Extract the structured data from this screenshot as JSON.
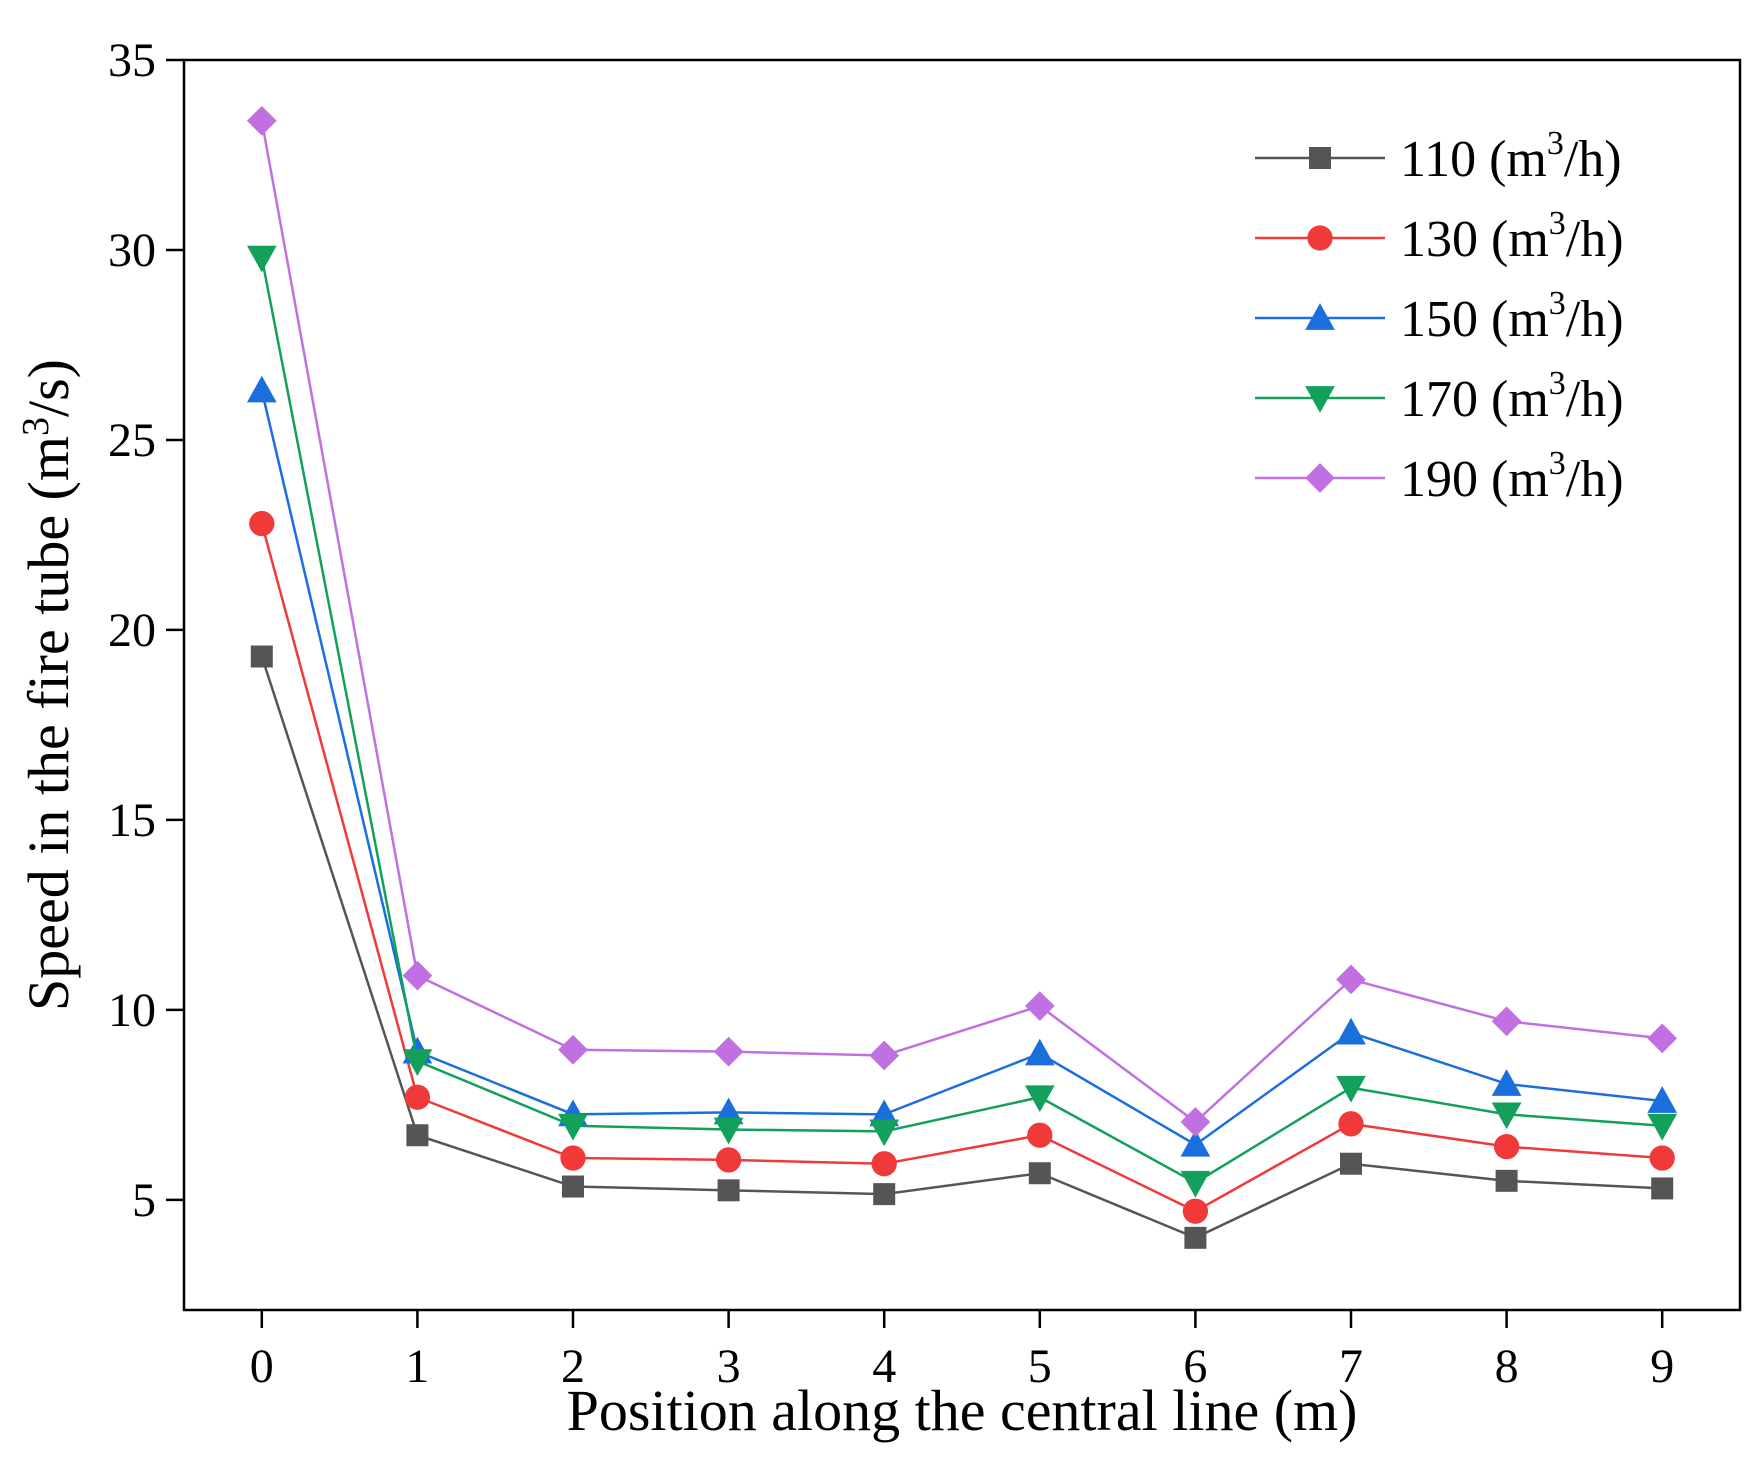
{
  "chart_data": {
    "type": "line",
    "title": "",
    "xlabel": "Position along the central line (m)",
    "ylabel_parts": {
      "before": "Speed in the fire tube (m",
      "sup": "3",
      "after": "/s)"
    },
    "x": [
      0,
      1,
      2,
      3,
      4,
      5,
      6,
      7,
      8,
      9
    ],
    "xlim": [
      -0.5,
      9.5
    ],
    "ylim": [
      2.1,
      35
    ],
    "xticks": [
      "0",
      "1",
      "2",
      "3",
      "4",
      "5",
      "6",
      "7",
      "8",
      "9"
    ],
    "yticks": [
      5,
      10,
      15,
      20,
      25,
      30,
      35
    ],
    "legend_position": "top-right",
    "series": [
      {
        "name": "110",
        "unit_before": " (m",
        "unit_sup": "3",
        "unit_after": "/h)",
        "color": "#555555",
        "marker": "square",
        "values": [
          19.3,
          6.7,
          5.35,
          5.25,
          5.15,
          5.7,
          4.0,
          5.95,
          5.5,
          5.3
        ]
      },
      {
        "name": "130",
        "unit_before": " (m",
        "unit_sup": "3",
        "unit_after": "/h)",
        "color": "#f03a3a",
        "marker": "circle",
        "values": [
          22.8,
          7.7,
          6.1,
          6.05,
          5.95,
          6.7,
          4.7,
          7.0,
          6.4,
          6.1
        ]
      },
      {
        "name": "150",
        "unit_before": " (m",
        "unit_sup": "3",
        "unit_after": "/h)",
        "color": "#1a6fdc",
        "marker": "triangle-up",
        "values": [
          26.3,
          8.9,
          7.25,
          7.3,
          7.25,
          8.85,
          6.45,
          9.4,
          8.05,
          7.6
        ]
      },
      {
        "name": "170",
        "unit_before": " (m",
        "unit_sup": "3",
        "unit_after": "/h)",
        "color": "#12a05a",
        "marker": "triangle-down",
        "values": [
          29.8,
          8.65,
          6.95,
          6.85,
          6.8,
          7.7,
          5.45,
          7.95,
          7.25,
          6.95
        ]
      },
      {
        "name": "190",
        "unit_before": " (m",
        "unit_sup": "3",
        "unit_after": "/h)",
        "color": "#c070e0",
        "marker": "diamond",
        "values": [
          33.4,
          10.9,
          8.95,
          8.9,
          8.8,
          10.1,
          7.05,
          10.8,
          9.7,
          9.25
        ]
      }
    ]
  }
}
